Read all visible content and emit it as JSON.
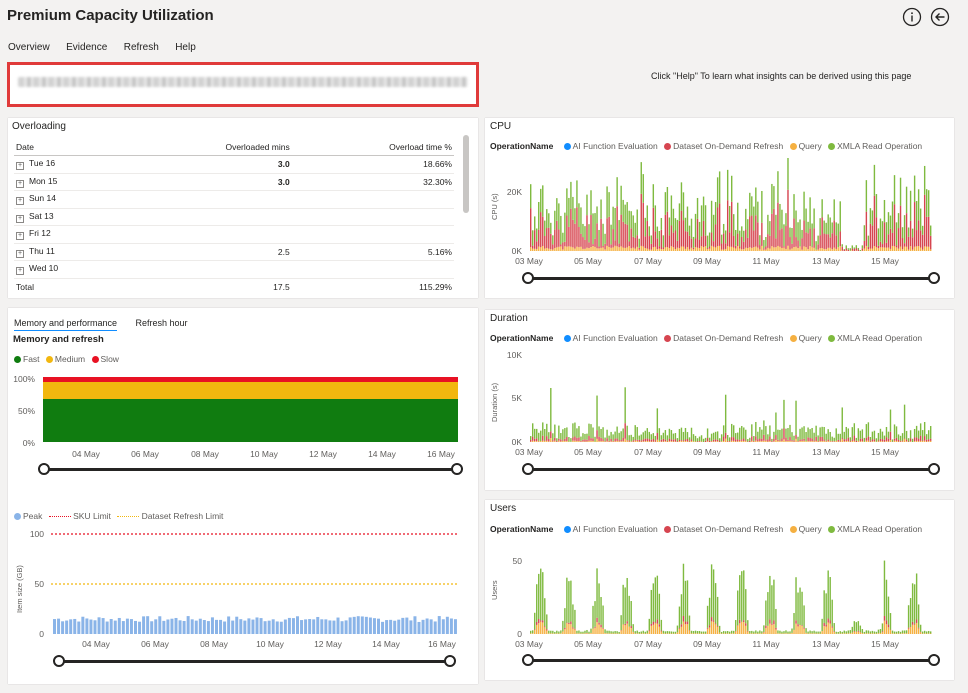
{
  "header": {
    "title": "Premium Capacity Utilization",
    "menu": [
      "Overview",
      "Evidence",
      "Refresh",
      "Help"
    ],
    "help_hint": "Click \"Help\" To learn what insights can be derived using this page",
    "info_icon": "info-icon",
    "back_icon": "back-arrow-icon"
  },
  "overloading": {
    "title": "Overloading",
    "columns": [
      "Date",
      "Overloaded mins",
      "Overload time %"
    ],
    "rows": [
      {
        "date": "Tue 16",
        "mins": "3.0",
        "pct": "18.66%"
      },
      {
        "date": "Mon 15",
        "mins": "3.0",
        "pct": "32.30%"
      },
      {
        "date": "Sun 14",
        "mins": "",
        "pct": ""
      },
      {
        "date": "Sat 13",
        "mins": "",
        "pct": ""
      },
      {
        "date": "Fri 12",
        "mins": "",
        "pct": ""
      },
      {
        "date": "Thu 11",
        "mins": "2.5",
        "pct": "5.16%"
      },
      {
        "date": "Wed 10",
        "mins": "",
        "pct": ""
      }
    ],
    "total": {
      "label": "Total",
      "mins": "17.5",
      "pct": "115.29%"
    }
  },
  "memory": {
    "tabs": [
      "Memory and performance",
      "Refresh hour"
    ],
    "title": "Memory and refresh",
    "legend": [
      {
        "label": "Fast",
        "color": "#107c10"
      },
      {
        "label": "Medium",
        "color": "#f2b70f"
      },
      {
        "label": "Slow",
        "color": "#e81123"
      }
    ],
    "y_ticks": [
      "100%",
      "50%",
      "0%"
    ],
    "x_ticks": [
      "04 May",
      "06 May",
      "08 May",
      "10 May",
      "12 May",
      "14 May",
      "16 May"
    ]
  },
  "itemsize": {
    "legend": [
      "Peak",
      "SKU Limit",
      "Dataset Refresh Limit"
    ],
    "ylabel": "Item size (GB)",
    "y_ticks": [
      "100",
      "50",
      "0"
    ],
    "x_ticks": [
      "04 May",
      "06 May",
      "08 May",
      "10 May",
      "12 May",
      "14 May",
      "16 May"
    ]
  },
  "operation_legend": {
    "label": "OperationName",
    "items": [
      {
        "label": "AI Function Evaluation",
        "color": "#118dff"
      },
      {
        "label": "Dataset On-Demand Refresh",
        "color": "#d64550"
      },
      {
        "label": "Query",
        "color": "#f5b041"
      },
      {
        "label": "XMLA Read Operation",
        "color": "#7fba3f"
      }
    ]
  },
  "cpu": {
    "title": "CPU",
    "ylabel": "CPU (s)",
    "y_ticks": [
      "20K",
      "0K"
    ],
    "x_ticks": [
      "03 May",
      "05 May",
      "07 May",
      "09 May",
      "11 May",
      "13 May",
      "15 May"
    ]
  },
  "duration": {
    "title": "Duration",
    "ylabel": "Duration (s)",
    "y_ticks": [
      "10K",
      "5K",
      "0K"
    ],
    "x_ticks": [
      "03 May",
      "05 May",
      "07 May",
      "09 May",
      "11 May",
      "13 May",
      "15 May"
    ]
  },
  "users": {
    "title": "Users",
    "ylabel": "Users",
    "y_ticks": [
      "50",
      "0"
    ],
    "x_ticks": [
      "03 May",
      "05 May",
      "07 May",
      "09 May",
      "11 May",
      "13 May",
      "15 May"
    ]
  }
}
